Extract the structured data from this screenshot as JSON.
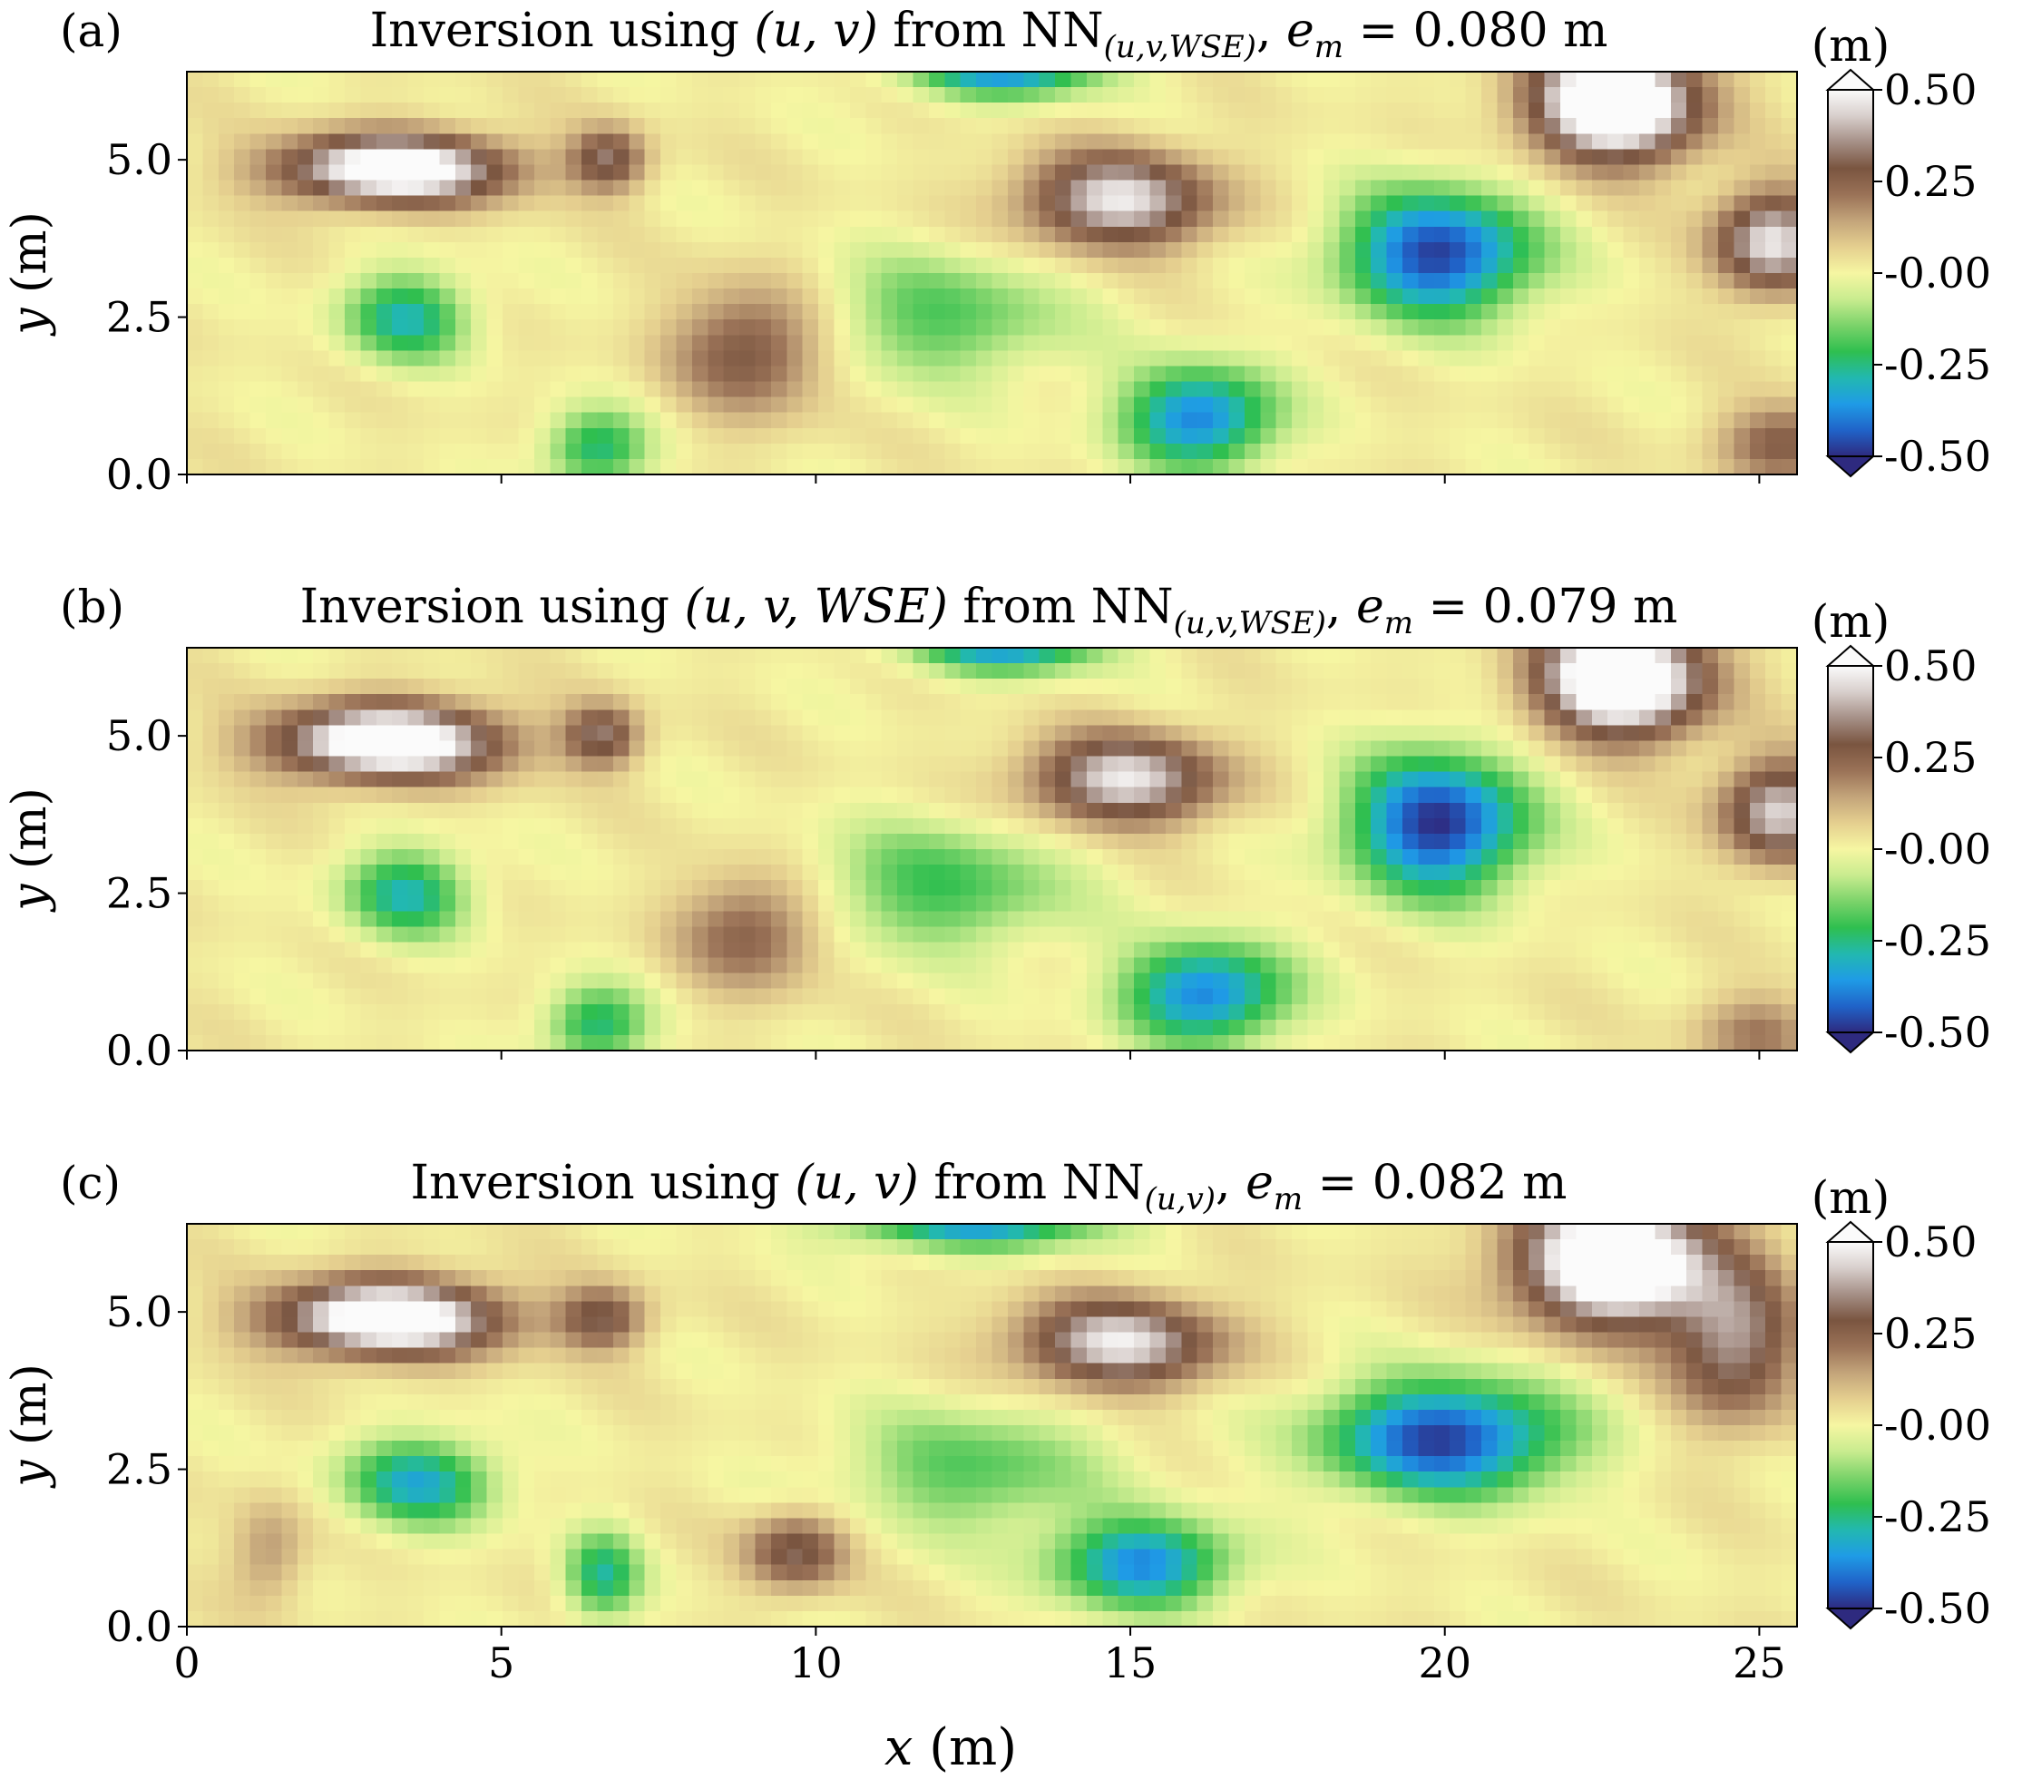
{
  "figure": {
    "xlabel": "x (m)",
    "xticks": [
      "0",
      "5",
      "10",
      "15",
      "20",
      "25"
    ],
    "colormap": [
      "#2e2a7f",
      "#2063c8",
      "#1f9be6",
      "#22b8b0",
      "#2fbf4f",
      "#7bd36a",
      "#c9ec8f",
      "#f6f6a2",
      "#e5cf8f",
      "#c3a47a",
      "#9a7257",
      "#7a5540",
      "#a58f86",
      "#d8cfcc",
      "#fbfbfb"
    ]
  },
  "chart_data": [
    {
      "type": "heatmap",
      "panel_label": "(a)",
      "title": "Inversion using (u, v) from NN(u,v,WSE), e_m = 0.080 m",
      "title_parts": {
        "pre": "Inversion using ",
        "args": "(u, v)",
        "mid": " from NN",
        "sub": "(u,v,WSE)",
        "em_pre": ", e",
        "em_sub": "m",
        "em_post": " = 0.080 m"
      },
      "ylabel": "y (m)",
      "xlim": [
        0,
        25.6
      ],
      "ylim": [
        0,
        6.4
      ],
      "yticks": [
        "0.0",
        "2.5",
        "5.0"
      ],
      "colorbar": {
        "label": "(m)",
        "range": [
          -0.5,
          0.5
        ],
        "ticks": [
          "0.50",
          "0.25",
          "-0.00",
          "-0.25",
          "-0.50"
        ]
      },
      "features": [
        {
          "name": "mound",
          "x": 3.3,
          "y": 4.85,
          "sx": 1.8,
          "sy": 0.55,
          "a": 0.6
        },
        {
          "name": "mound",
          "x": 6.7,
          "y": 5.0,
          "sx": 0.6,
          "sy": 0.5,
          "a": 0.3
        },
        {
          "name": "mound",
          "x": 9.0,
          "y": 2.0,
          "sx": 1.2,
          "sy": 1.0,
          "a": 0.28
        },
        {
          "name": "mound",
          "x": 14.8,
          "y": 4.35,
          "sx": 1.5,
          "sy": 0.75,
          "a": 0.45
        },
        {
          "name": "mound",
          "x": 22.7,
          "y": 5.9,
          "sx": 1.3,
          "sy": 0.9,
          "a": 0.7
        },
        {
          "name": "mound",
          "x": 25.2,
          "y": 3.7,
          "sx": 0.9,
          "sy": 0.8,
          "a": 0.45
        },
        {
          "name": "mound",
          "x": 25.4,
          "y": 0.5,
          "sx": 1.0,
          "sy": 0.6,
          "a": 0.25
        },
        {
          "name": "trough",
          "x": 13.0,
          "y": 6.5,
          "sx": 1.5,
          "sy": 0.5,
          "a": -0.42
        },
        {
          "name": "trough",
          "x": 19.9,
          "y": 3.5,
          "sx": 1.5,
          "sy": 1.0,
          "a": -0.5
        },
        {
          "name": "trough",
          "x": 16.1,
          "y": 0.9,
          "sx": 1.2,
          "sy": 0.8,
          "a": -0.42
        },
        {
          "name": "trough",
          "x": 3.5,
          "y": 2.5,
          "sx": 1.0,
          "sy": 0.7,
          "a": -0.3
        },
        {
          "name": "trough",
          "x": 6.5,
          "y": 0.4,
          "sx": 0.8,
          "sy": 0.6,
          "a": -0.28
        },
        {
          "name": "trough",
          "x": 12.0,
          "y": 2.5,
          "sx": 2.0,
          "sy": 1.0,
          "a": -0.2
        }
      ]
    },
    {
      "type": "heatmap",
      "panel_label": "(b)",
      "title": "Inversion using (u, v, WSE) from NN(u,v,WSE), e_m = 0.079 m",
      "title_parts": {
        "pre": "Inversion using ",
        "args": "(u, v, WSE)",
        "mid": " from NN",
        "sub": "(u,v,WSE)",
        "em_pre": ", e",
        "em_sub": "m",
        "em_post": " = 0.079 m"
      },
      "ylabel": "y (m)",
      "xlim": [
        0,
        25.6
      ],
      "ylim": [
        0,
        6.4
      ],
      "yticks": [
        "0.0",
        "2.5",
        "5.0"
      ],
      "colorbar": {
        "label": "(m)",
        "range": [
          -0.5,
          0.5
        ],
        "ticks": [
          "0.50",
          "0.25",
          "-0.00",
          "-0.25",
          "-0.50"
        ]
      },
      "features": [
        {
          "name": "mound",
          "x": 3.2,
          "y": 4.9,
          "sx": 1.8,
          "sy": 0.6,
          "a": 0.62
        },
        {
          "name": "mound",
          "x": 6.6,
          "y": 5.0,
          "sx": 0.6,
          "sy": 0.5,
          "a": 0.3
        },
        {
          "name": "mound",
          "x": 9.0,
          "y": 1.9,
          "sx": 1.1,
          "sy": 0.9,
          "a": 0.25
        },
        {
          "name": "mound",
          "x": 14.9,
          "y": 4.3,
          "sx": 1.5,
          "sy": 0.7,
          "a": 0.45
        },
        {
          "name": "mound",
          "x": 22.8,
          "y": 5.9,
          "sx": 1.3,
          "sy": 0.9,
          "a": 0.7
        },
        {
          "name": "mound",
          "x": 25.3,
          "y": 3.8,
          "sx": 0.9,
          "sy": 0.8,
          "a": 0.42
        },
        {
          "name": "mound",
          "x": 25.0,
          "y": 0.3,
          "sx": 1.0,
          "sy": 0.6,
          "a": 0.18
        },
        {
          "name": "trough",
          "x": 13.0,
          "y": 6.5,
          "sx": 1.5,
          "sy": 0.5,
          "a": -0.4
        },
        {
          "name": "trough",
          "x": 19.9,
          "y": 3.6,
          "sx": 1.4,
          "sy": 1.1,
          "a": -0.52
        },
        {
          "name": "trough",
          "x": 16.2,
          "y": 0.9,
          "sx": 1.3,
          "sy": 0.8,
          "a": -0.42
        },
        {
          "name": "trough",
          "x": 3.5,
          "y": 2.5,
          "sx": 1.0,
          "sy": 0.7,
          "a": -0.3
        },
        {
          "name": "trough",
          "x": 6.5,
          "y": 0.4,
          "sx": 0.8,
          "sy": 0.6,
          "a": -0.28
        },
        {
          "name": "trough",
          "x": 12.0,
          "y": 2.6,
          "sx": 2.0,
          "sy": 1.0,
          "a": -0.22
        }
      ]
    },
    {
      "type": "heatmap",
      "panel_label": "(c)",
      "title": "Inversion using (u, v) from NN(u,v), e_m = 0.082 m",
      "title_parts": {
        "pre": "Inversion using ",
        "args": "(u, v)",
        "mid": " from NN",
        "sub": "(u,v)",
        "em_pre": ", e",
        "em_sub": "m",
        "em_post": " = 0.082 m"
      },
      "ylabel": "y (m)",
      "xlim": [
        0,
        25.6
      ],
      "ylim": [
        0,
        6.4
      ],
      "yticks": [
        "0.0",
        "2.5",
        "5.0"
      ],
      "colorbar": {
        "label": "(m)",
        "range": [
          -0.5,
          0.5
        ],
        "ticks": [
          "0.50",
          "0.25",
          "-0.00",
          "-0.25",
          "-0.50"
        ]
      },
      "features": [
        {
          "name": "mound",
          "x": 3.2,
          "y": 4.9,
          "sx": 1.8,
          "sy": 0.6,
          "a": 0.62
        },
        {
          "name": "mound",
          "x": 6.6,
          "y": 4.9,
          "sx": 0.7,
          "sy": 0.5,
          "a": 0.28
        },
        {
          "name": "mound",
          "x": 9.7,
          "y": 1.2,
          "sx": 0.8,
          "sy": 0.6,
          "a": 0.3
        },
        {
          "name": "mound",
          "x": 14.8,
          "y": 4.5,
          "sx": 1.6,
          "sy": 0.7,
          "a": 0.45
        },
        {
          "name": "mound",
          "x": 22.7,
          "y": 5.8,
          "sx": 1.5,
          "sy": 1.0,
          "a": 0.7
        },
        {
          "name": "mound",
          "x": 24.6,
          "y": 4.5,
          "sx": 1.0,
          "sy": 1.2,
          "a": 0.35
        },
        {
          "name": "mound",
          "x": 1.3,
          "y": 1.2,
          "sx": 0.6,
          "sy": 0.8,
          "a": 0.15
        },
        {
          "name": "trough",
          "x": 12.5,
          "y": 6.5,
          "sx": 2.0,
          "sy": 0.5,
          "a": -0.4
        },
        {
          "name": "trough",
          "x": 20.0,
          "y": 3.0,
          "sx": 1.9,
          "sy": 0.9,
          "a": -0.5
        },
        {
          "name": "trough",
          "x": 15.2,
          "y": 1.0,
          "sx": 1.4,
          "sy": 0.7,
          "a": -0.4
        },
        {
          "name": "trough",
          "x": 3.7,
          "y": 2.3,
          "sx": 1.2,
          "sy": 0.7,
          "a": -0.33
        },
        {
          "name": "trough",
          "x": 6.6,
          "y": 0.8,
          "sx": 0.6,
          "sy": 0.7,
          "a": -0.28
        },
        {
          "name": "trough",
          "x": 12.5,
          "y": 2.5,
          "sx": 2.0,
          "sy": 1.0,
          "a": -0.2
        }
      ]
    }
  ]
}
